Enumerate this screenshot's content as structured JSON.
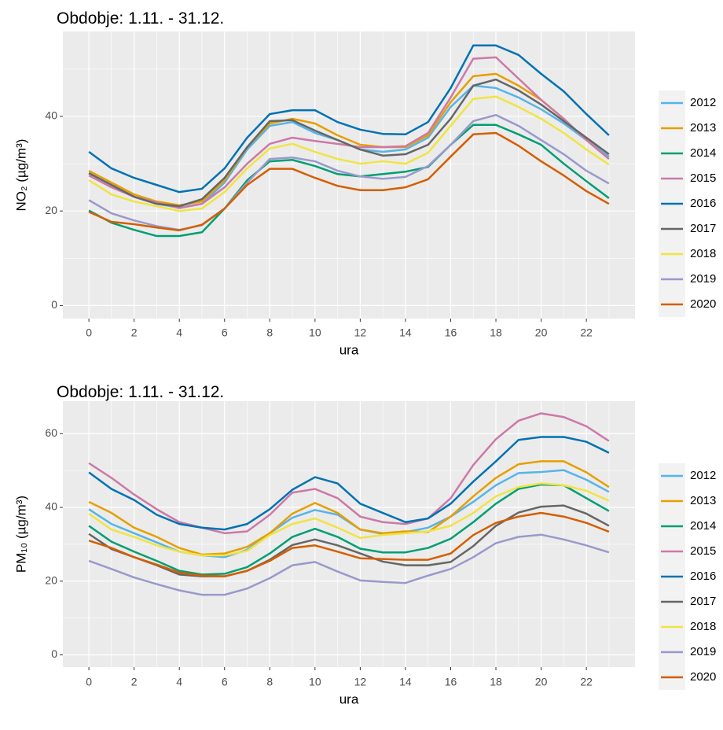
{
  "chart_data": [
    {
      "type": "line",
      "title": "Obdobje: 1.11. - 31.12.",
      "xlabel": "ura",
      "ylabel": "NO₂ (µg/m³)",
      "x": [
        0,
        1,
        2,
        3,
        4,
        5,
        6,
        7,
        8,
        9,
        10,
        11,
        12,
        13,
        14,
        15,
        16,
        17,
        18,
        19,
        20,
        21,
        22,
        23
      ],
      "xlim": [
        -1.15,
        24.15
      ],
      "xticks": [
        0,
        2,
        4,
        6,
        8,
        10,
        12,
        14,
        16,
        18,
        20,
        22
      ],
      "ylim": [
        -2.76,
        57.96
      ],
      "yticks": [
        0,
        20,
        40
      ],
      "grid": true,
      "series": [
        {
          "name": "2012",
          "color": "#56B4E9",
          "values": [
            28,
            25.5,
            23,
            21.5,
            20.7,
            21.5,
            26,
            33,
            38,
            38.8,
            36.5,
            35,
            33,
            32.5,
            33,
            35.5,
            42,
            46.5,
            46,
            44,
            41.5,
            38.5,
            35,
            31.5
          ]
        },
        {
          "name": "2013",
          "color": "#E69F00",
          "values": [
            28.5,
            26,
            23.5,
            22,
            21.2,
            22,
            26.5,
            33.5,
            38.5,
            39.5,
            38.5,
            36,
            34,
            33.5,
            33.5,
            36,
            43,
            48.5,
            49,
            46.5,
            43.5,
            39.5,
            35,
            31
          ]
        },
        {
          "name": "2014",
          "color": "#009E73",
          "values": [
            20.1,
            17.5,
            16,
            14.7,
            14.7,
            15.5,
            20.5,
            26.5,
            30.5,
            30.8,
            29.5,
            27.8,
            27.3,
            27.8,
            28.3,
            29.3,
            34,
            38.2,
            38.2,
            36.2,
            34,
            30,
            26.3,
            22.7
          ]
        },
        {
          "name": "2015",
          "color": "#CC79A7",
          "values": [
            27.5,
            25,
            23,
            21.8,
            20.6,
            21.5,
            25,
            30,
            34.2,
            35.5,
            34.8,
            34.2,
            33.5,
            33.5,
            33.7,
            36.5,
            44,
            52.2,
            52.5,
            48,
            43.5,
            39.5,
            35,
            31
          ]
        },
        {
          "name": "2016",
          "color": "#0072B2",
          "values": [
            32.5,
            29,
            27,
            25.5,
            24,
            24.7,
            29,
            35.5,
            40.5,
            41.3,
            41.3,
            38.8,
            37.2,
            36.3,
            36.2,
            38.8,
            46,
            55,
            55,
            53,
            49,
            45.3,
            40.5,
            36
          ]
        },
        {
          "name": "2017",
          "color": "#666666",
          "values": [
            28,
            25.5,
            23,
            21.5,
            21,
            22.5,
            27,
            33.5,
            39,
            39.2,
            37,
            35,
            33,
            31.7,
            32,
            34,
            39.5,
            46.5,
            47.8,
            45.5,
            42.5,
            39,
            35.5,
            32
          ]
        },
        {
          "name": "2018",
          "color": "#F0E442",
          "values": [
            26.5,
            23.5,
            22,
            21,
            20,
            20.5,
            24,
            29,
            33.2,
            34.2,
            32.5,
            31,
            30,
            30.5,
            30,
            32.3,
            38,
            43.7,
            44.2,
            42,
            39.5,
            36.5,
            33,
            29.8
          ]
        },
        {
          "name": "2019",
          "color": "#9999CC",
          "values": [
            22.3,
            19.5,
            18,
            16.8,
            16,
            17,
            20.5,
            26,
            31,
            31.3,
            30.5,
            28.5,
            27.3,
            26.8,
            27.2,
            29.5,
            34,
            39,
            40.3,
            38,
            35,
            32,
            28.5,
            25.8
          ]
        },
        {
          "name": "2020",
          "color": "#D55E00",
          "values": [
            19.8,
            17.7,
            17.2,
            16.5,
            15.9,
            17.1,
            20.5,
            25.5,
            28.9,
            28.9,
            27,
            25.3,
            24.4,
            24.4,
            25,
            26.7,
            31.5,
            36.2,
            36.5,
            33.8,
            30.5,
            27.5,
            24.2,
            21.5
          ]
        }
      ]
    },
    {
      "type": "line",
      "title": "Obdobje: 1.11. - 31.12.",
      "xlabel": "ura",
      "ylabel": "PM₁₀ (µg/m³)",
      "x": [
        0,
        1,
        2,
        3,
        4,
        5,
        6,
        7,
        8,
        9,
        10,
        11,
        12,
        13,
        14,
        15,
        16,
        17,
        18,
        19,
        20,
        21,
        22,
        23
      ],
      "xlim": [
        -1.15,
        24.15
      ],
      "xticks": [
        0,
        2,
        4,
        6,
        8,
        10,
        12,
        14,
        16,
        18,
        20,
        22
      ],
      "ylim": [
        -3.3,
        68.8
      ],
      "yticks": [
        0,
        20,
        40,
        60
      ],
      "grid": true,
      "series": [
        {
          "name": "2012",
          "color": "#56B4E9",
          "values": [
            39.5,
            35.5,
            33,
            30.5,
            28,
            27,
            26.5,
            28.5,
            33,
            37.2,
            39.3,
            38,
            34,
            32.8,
            33.3,
            34.5,
            37.5,
            41.5,
            46,
            49.3,
            49.6,
            50.1,
            47.5,
            44.2
          ]
        },
        {
          "name": "2013",
          "color": "#E69F00",
          "values": [
            41.5,
            38.5,
            34.5,
            32,
            29,
            27.2,
            27.5,
            29.3,
            33,
            38.3,
            41.2,
            38.5,
            34,
            33,
            33.5,
            33.3,
            37.5,
            43,
            48,
            51.7,
            52.5,
            52.5,
            49.5,
            45.5
          ]
        },
        {
          "name": "2014",
          "color": "#009E73",
          "values": [
            35,
            30.7,
            28,
            25.5,
            22.8,
            21.8,
            22,
            23.8,
            27.5,
            32,
            34.2,
            32,
            28.8,
            27.8,
            27.8,
            29,
            31.5,
            36,
            41,
            45,
            46.2,
            46,
            42.5,
            39
          ]
        },
        {
          "name": "2015",
          "color": "#CC79A7",
          "values": [
            52,
            48,
            43.5,
            39.5,
            36,
            34.5,
            33,
            33.5,
            38,
            44,
            45,
            42.5,
            37.5,
            36,
            35.5,
            37,
            42.5,
            51.5,
            58.5,
            63.5,
            65.5,
            64.5,
            62,
            58
          ]
        },
        {
          "name": "2016",
          "color": "#0072B2",
          "values": [
            49.5,
            45,
            42,
            38,
            35.5,
            34.5,
            34,
            35.5,
            39.5,
            44.8,
            48.2,
            46.5,
            41,
            38.5,
            36,
            37,
            41,
            47,
            52.5,
            58.3,
            59.1,
            59.1,
            57.8,
            54.8
          ]
        },
        {
          "name": "2017",
          "color": "#666666",
          "values": [
            32.8,
            28.7,
            26.5,
            24.3,
            21.8,
            21.3,
            21.3,
            22.8,
            25.8,
            29.8,
            31.3,
            29.7,
            27.5,
            25.3,
            24.3,
            24.3,
            25.2,
            29.5,
            35,
            38.6,
            40.2,
            40.5,
            38.3,
            35
          ]
        },
        {
          "name": "2018",
          "color": "#F0E442",
          "values": [
            38.3,
            34,
            32,
            29.7,
            28,
            27,
            27,
            28.2,
            32.5,
            35.5,
            37,
            34.5,
            31.7,
            32.5,
            33,
            33.5,
            35,
            38.5,
            43,
            45.5,
            46.5,
            46,
            44.5,
            41.8
          ]
        },
        {
          "name": "2019",
          "color": "#9999CC",
          "values": [
            25.5,
            23.3,
            21,
            19.2,
            17.5,
            16.3,
            16.3,
            18,
            20.8,
            24.3,
            25.2,
            22.6,
            20.2,
            19.8,
            19.5,
            21.5,
            23.3,
            26.5,
            30.3,
            32,
            32.6,
            31.3,
            29.7,
            27.8
          ]
        },
        {
          "name": "2020",
          "color": "#D55E00",
          "values": [
            31,
            29,
            26.5,
            24.5,
            22.3,
            21.5,
            21.3,
            22.8,
            25.5,
            29,
            29.7,
            28,
            26.2,
            26,
            25.8,
            25.8,
            27.5,
            32.5,
            35.8,
            37.5,
            38.5,
            37.5,
            35.8,
            33.4
          ]
        }
      ]
    }
  ]
}
